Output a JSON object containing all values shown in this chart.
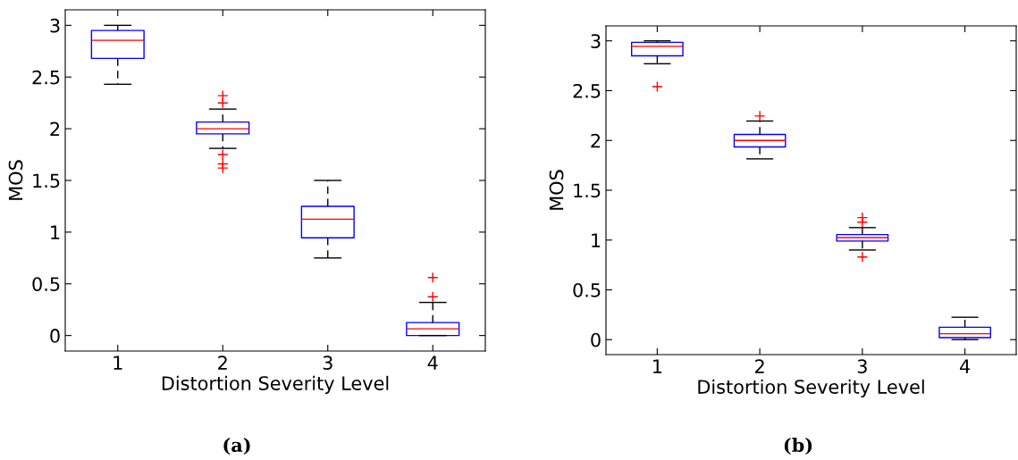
{
  "chart_data": [
    {
      "type": "box",
      "xlabel": "Distortion Severity Level",
      "ylabel": "MOS",
      "categories": [
        "1",
        "2",
        "3",
        "4"
      ],
      "ylim": [
        -0.15,
        3.15
      ],
      "yticks": [
        0,
        0.5,
        1,
        1.5,
        2,
        2.5,
        3
      ],
      "annotations": [
        "(a)"
      ],
      "boxes": [
        {
          "low": 2.43,
          "q1": 2.68,
          "median": 2.855,
          "q3": 2.95,
          "high": 3.0
        },
        {
          "low": 1.81,
          "q1": 1.95,
          "median": 2.0,
          "q3": 2.065,
          "high": 2.19,
          "outliers": [
            2.32,
            2.25,
            1.75,
            1.66,
            1.62
          ]
        },
        {
          "low": 0.75,
          "q1": 0.945,
          "median": 1.125,
          "q3": 1.25,
          "high": 1.5
        },
        {
          "low": 0.0,
          "q1": 0.0,
          "median": 0.065,
          "q3": 0.125,
          "high": 0.32,
          "outliers": [
            0.56,
            0.375
          ]
        }
      ]
    },
    {
      "type": "box",
      "xlabel": "Distortion Severity Level",
      "ylabel": "MOS",
      "categories": [
        "1",
        "2",
        "3",
        "4"
      ],
      "ylim": [
        -0.15,
        3.15
      ],
      "yticks": [
        0,
        0.5,
        1,
        1.5,
        2,
        2.5,
        3
      ],
      "annotations": [
        "(b)"
      ],
      "boxes": [
        {
          "low": 2.77,
          "q1": 2.85,
          "median": 2.945,
          "q3": 2.985,
          "high": 3.0,
          "outliers": [
            2.54
          ]
        },
        {
          "low": 1.815,
          "q1": 1.935,
          "median": 2.0,
          "q3": 2.06,
          "high": 2.195,
          "outliers": [
            2.245
          ]
        },
        {
          "low": 0.9,
          "q1": 0.99,
          "median": 1.025,
          "q3": 1.055,
          "high": 1.125,
          "outliers": [
            1.225,
            1.18,
            0.83
          ]
        },
        {
          "low": 0.0,
          "q1": 0.02,
          "median": 0.06,
          "q3": 0.125,
          "high": 0.225
        }
      ]
    }
  ]
}
